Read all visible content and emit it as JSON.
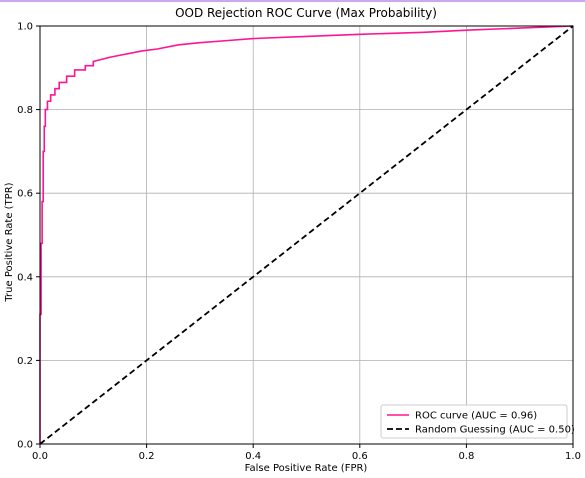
{
  "chart_data": {
    "type": "line",
    "title": "OOD Rejection ROC Curve (Max Probability)",
    "xlabel": "False Positive Rate (FPR)",
    "ylabel": "True Positive Rate (TPR)",
    "xlim": [
      0.0,
      1.0
    ],
    "ylim": [
      0.0,
      1.0
    ],
    "xticks": [
      "0.0",
      "0.2",
      "0.4",
      "0.6",
      "0.8",
      "1.0"
    ],
    "yticks": [
      "0.0",
      "0.2",
      "0.4",
      "0.6",
      "0.8",
      "1.0"
    ],
    "grid": true,
    "legend_position": "lower-right",
    "series": [
      {
        "name": "ROC curve (AUC = 0.96)",
        "color": "#ff1493",
        "style": "solid",
        "x": [
          0.0,
          0.0,
          0.002,
          0.002,
          0.004,
          0.004,
          0.006,
          0.006,
          0.008,
          0.008,
          0.01,
          0.01,
          0.014,
          0.014,
          0.02,
          0.02,
          0.028,
          0.028,
          0.036,
          0.036,
          0.05,
          0.05,
          0.065,
          0.065,
          0.085,
          0.085,
          0.1,
          0.1,
          0.13,
          0.15,
          0.19,
          0.22,
          0.26,
          0.3,
          0.35,
          0.4,
          0.5,
          0.6,
          0.72,
          0.8,
          0.9,
          1.0
        ],
        "y": [
          0.0,
          0.31,
          0.31,
          0.48,
          0.48,
          0.58,
          0.58,
          0.7,
          0.7,
          0.76,
          0.76,
          0.8,
          0.8,
          0.82,
          0.82,
          0.835,
          0.835,
          0.85,
          0.85,
          0.865,
          0.865,
          0.88,
          0.88,
          0.895,
          0.895,
          0.905,
          0.905,
          0.915,
          0.925,
          0.93,
          0.94,
          0.945,
          0.955,
          0.96,
          0.965,
          0.97,
          0.975,
          0.98,
          0.985,
          0.99,
          0.995,
          1.0
        ]
      },
      {
        "name": "Random Guessing (AUC = 0.50)",
        "color": "#000000",
        "style": "dashed",
        "x": [
          0.0,
          1.0
        ],
        "y": [
          0.0,
          1.0
        ]
      }
    ]
  }
}
